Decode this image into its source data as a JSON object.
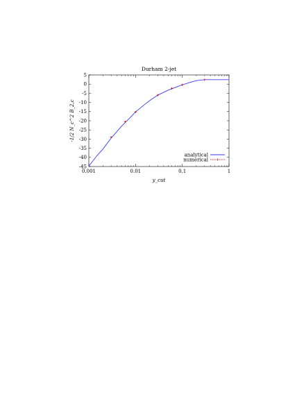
{
  "chart_data": {
    "type": "line",
    "title": "Durham 2-jet",
    "xlabel": "y_cut",
    "ylabel": "-1/2 N_c^2 B_2,c",
    "xscale": "log",
    "xlim": [
      0.001,
      1
    ],
    "ylim": [
      -45,
      5
    ],
    "x_ticks": [
      {
        "value": 0.001,
        "label": "0.001"
      },
      {
        "value": 0.01,
        "label": "0.01"
      },
      {
        "value": 0.1,
        "label": "0.1"
      },
      {
        "value": 1,
        "label": "1"
      }
    ],
    "y_ticks": [
      {
        "value": 5,
        "label": "5"
      },
      {
        "value": 0,
        "label": "0"
      },
      {
        "value": -5,
        "label": "-5"
      },
      {
        "value": -10,
        "label": "-10"
      },
      {
        "value": -15,
        "label": "-15"
      },
      {
        "value": -20,
        "label": "-20"
      },
      {
        "value": -25,
        "label": "-25"
      },
      {
        "value": -30,
        "label": "-30"
      },
      {
        "value": -35,
        "label": "-35"
      },
      {
        "value": -40,
        "label": "-40"
      },
      {
        "value": -45,
        "label": "-45"
      }
    ],
    "legend_position": "bottom-right",
    "series": [
      {
        "name": "analytical",
        "style": "line",
        "color": "#3a3aff",
        "x": [
          0.001,
          0.0015,
          0.002,
          0.003,
          0.005,
          0.0075,
          0.01,
          0.015,
          0.02,
          0.03,
          0.05,
          0.075,
          0.1,
          0.15,
          0.2,
          0.3,
          0.5,
          1.0
        ],
        "y": [
          -44.8,
          -39.0,
          -35.5,
          -29.5,
          -23.0,
          -18.5,
          -15.2,
          -11.5,
          -9.0,
          -6.0,
          -3.3,
          -1.6,
          -0.4,
          1.0,
          1.9,
          2.4,
          2.4,
          2.4
        ]
      },
      {
        "name": "numerical",
        "style": "points",
        "color": "#cc0000",
        "x": [
          0.003,
          0.006,
          0.01,
          0.03,
          0.06,
          0.1,
          0.3
        ],
        "y": [
          -29.0,
          -20.5,
          -15.2,
          -6.0,
          -2.3,
          -0.4,
          2.4
        ]
      }
    ]
  }
}
